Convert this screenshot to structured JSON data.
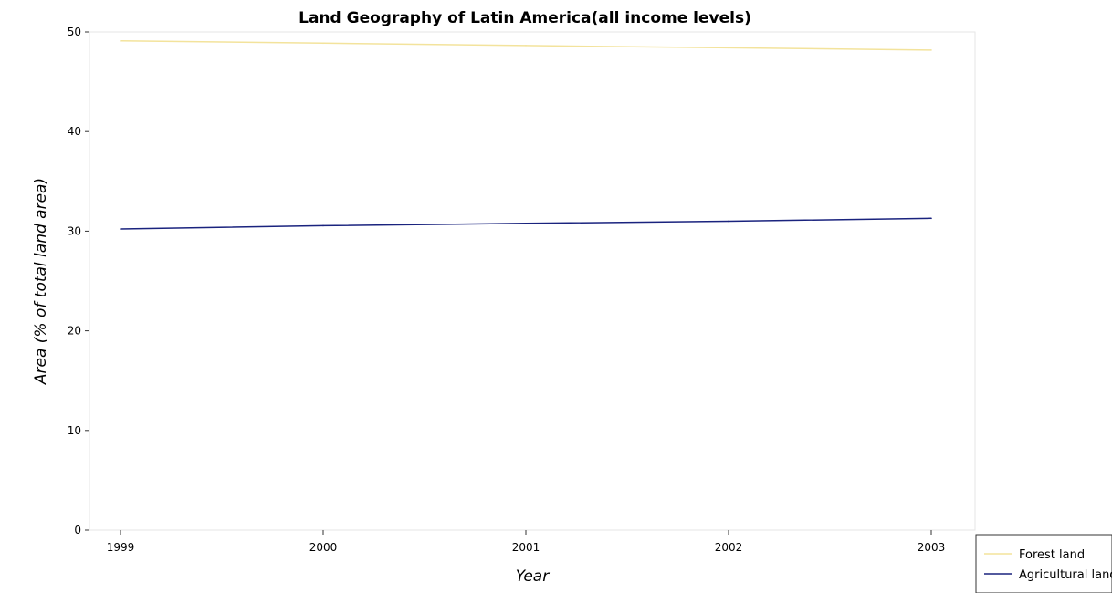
{
  "chart_data": {
    "type": "line",
    "title": "Land Geography of Latin America(all income levels)",
    "xlabel": "Year",
    "ylabel": "Area (% of total land area)",
    "categories": [
      "1999",
      "2000",
      "2001",
      "2002",
      "2003"
    ],
    "ylim": [
      0,
      50
    ],
    "yticks": [
      "0",
      "10",
      "20",
      "30",
      "40",
      "50"
    ],
    "grid": false,
    "legend_position": "bottom-right",
    "series": [
      {
        "name": "Forest land",
        "color": "#f3e39c",
        "values": [
          49.1,
          48.87,
          48.64,
          48.41,
          48.18
        ]
      },
      {
        "name": "Agricultural land",
        "color": "#1a237e",
        "values": [
          30.22,
          30.55,
          30.79,
          31.0,
          31.29
        ]
      }
    ]
  }
}
